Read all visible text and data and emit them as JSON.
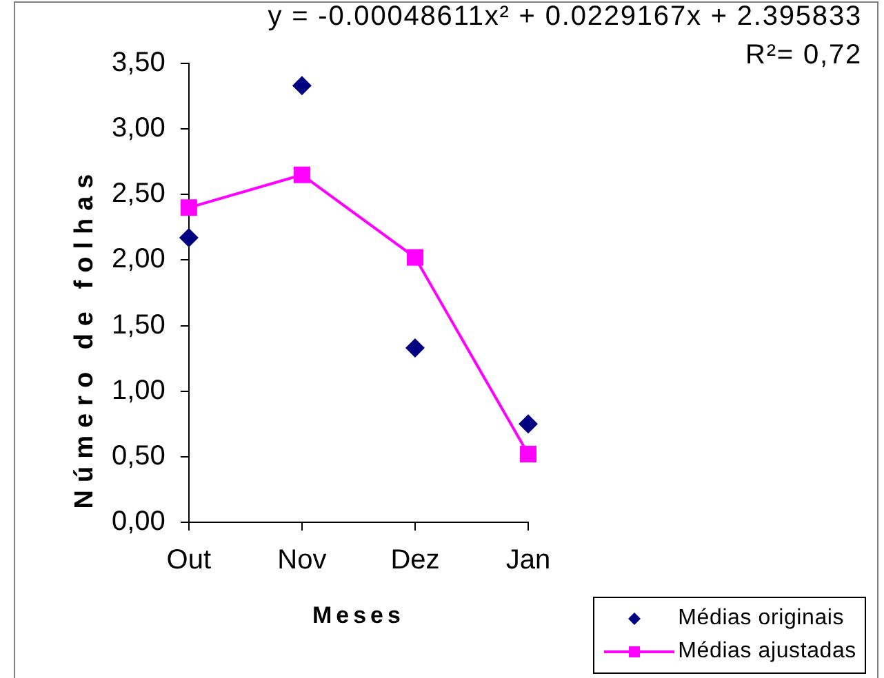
{
  "chart_data": {
    "type": "line",
    "xlabel": "Meses",
    "ylabel": "Número de folhas",
    "categories": [
      "Out",
      "Nov",
      "Dez",
      "Jan"
    ],
    "series": [
      {
        "name": "Médias originais",
        "type": "scatter",
        "marker": "diamond",
        "color": "#000080",
        "values": [
          2.17,
          3.33,
          1.33,
          0.75
        ]
      },
      {
        "name": "Médias ajustadas",
        "type": "line",
        "marker": "square",
        "color": "#ff00ff",
        "values": [
          2.4,
          2.65,
          2.02,
          0.52
        ]
      }
    ],
    "ylim": [
      0,
      3.5
    ],
    "yticks": [
      {
        "value": 0,
        "label": "0,00"
      },
      {
        "value": 0.5,
        "label": "0,50"
      },
      {
        "value": 1,
        "label": "1,00"
      },
      {
        "value": 1.5,
        "label": "1,50"
      },
      {
        "value": 2,
        "label": "2,00"
      },
      {
        "value": 2.5,
        "label": "2,50"
      },
      {
        "value": 3,
        "label": "3,00"
      },
      {
        "value": 3.5,
        "label": "3,50"
      }
    ],
    "legend": "bottom right",
    "annotations": [
      "y = -0.00048611x² + 0.0229167x + 2.395833",
      "R²= 0,72"
    ]
  }
}
